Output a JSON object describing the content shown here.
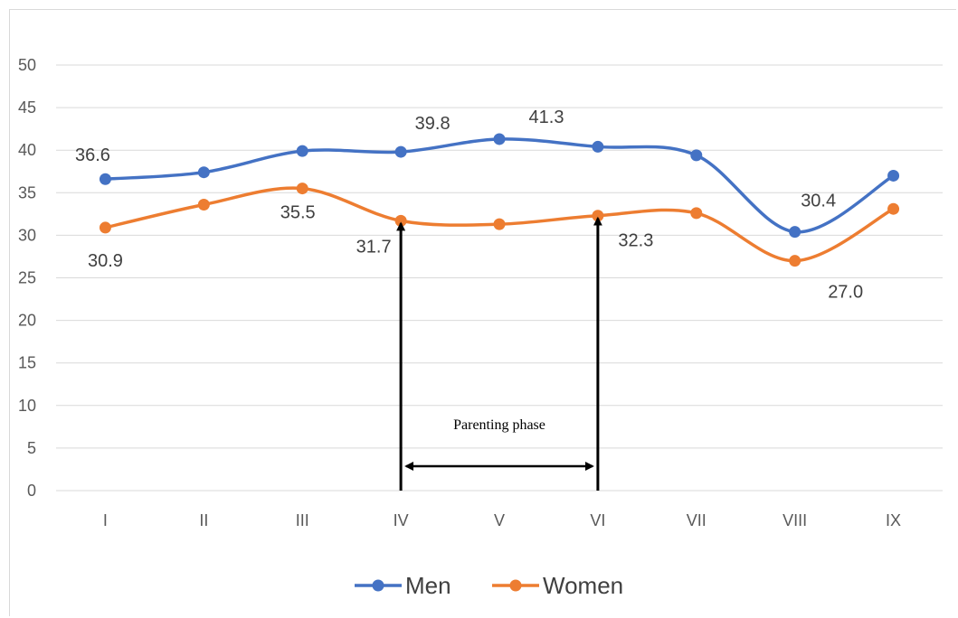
{
  "chart_data": {
    "type": "line",
    "categories": [
      "I",
      "II",
      "III",
      "IV",
      "V",
      "VI",
      "VII",
      "VIII",
      "IX"
    ],
    "ylim": [
      0,
      50
    ],
    "yticks": [
      0,
      5,
      10,
      15,
      20,
      25,
      30,
      35,
      40,
      45,
      50
    ],
    "grid": "horizontal",
    "legend": "bottom",
    "series": [
      {
        "name": "Men",
        "color": "#4472c4",
        "values": [
          36.6,
          37.4,
          39.9,
          39.8,
          41.3,
          40.4,
          39.4,
          30.4,
          37.0
        ],
        "data_labels": [
          "36.6",
          "",
          "",
          "39.8",
          "41.3",
          "",
          "",
          "30.4",
          ""
        ]
      },
      {
        "name": "Women",
        "color": "#ed7d31",
        "values": [
          30.9,
          33.6,
          35.5,
          31.7,
          31.3,
          32.3,
          32.6,
          27.0,
          33.1
        ],
        "data_labels": [
          "30.9",
          "",
          "35.5",
          "31.7",
          "",
          "32.3",
          "",
          "27.0",
          ""
        ]
      }
    ],
    "annotation": {
      "text": "Parenting phase",
      "from_category": "IV",
      "to_category": "VI"
    }
  }
}
